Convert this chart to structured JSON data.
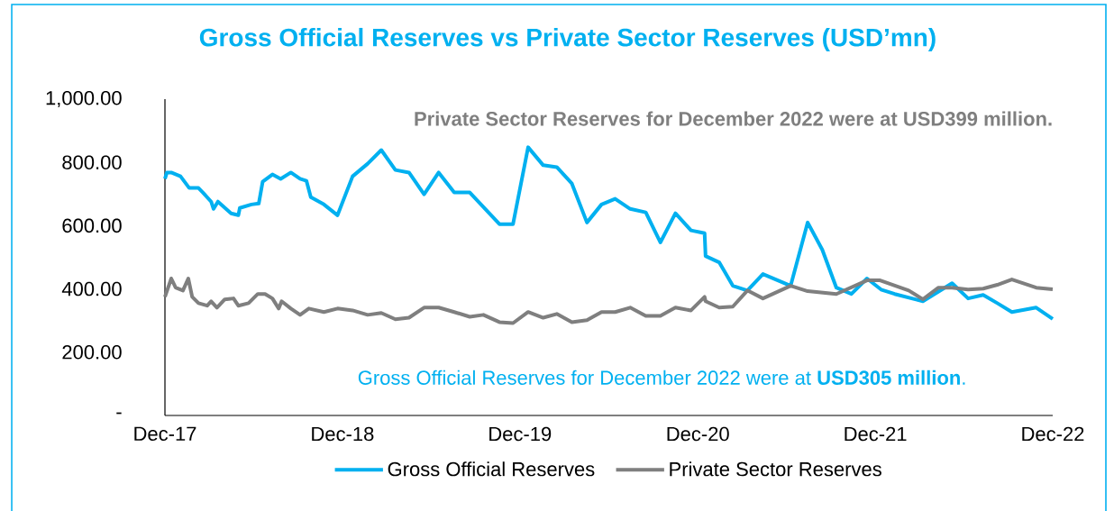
{
  "chart_data": {
    "type": "line",
    "title": "Gross Official Reserves vs Private Sector Reserves (USD’mn)",
    "annotations": [
      "Private Sector Reserves for December 2022 were at USD399 million.",
      "Gross Official Reserves for December 2022 were at **USD305 million**."
    ],
    "xlim": [
      "2017-12-01",
      "2022-12-01"
    ],
    "xticks": [
      {
        "value": "2017-12-01",
        "label": "Dec-17"
      },
      {
        "value": "2018-12-01",
        "label": "Dec-18"
      },
      {
        "value": "2019-12-01",
        "label": "Dec-19"
      },
      {
        "value": "2020-12-01",
        "label": "Dec-20"
      },
      {
        "value": "2021-12-01",
        "label": "Dec-21"
      },
      {
        "value": "2022-12-01",
        "label": "Dec-22"
      }
    ],
    "ylim": [
      0,
      1000
    ],
    "yticks": [
      {
        "value": 0,
        "label": "-"
      },
      {
        "value": 200,
        "label": "200.00"
      },
      {
        "value": 400,
        "label": "400.00"
      },
      {
        "value": 600,
        "label": "600.00"
      },
      {
        "value": 800,
        "label": "800.00"
      },
      {
        "value": 1000,
        "label": "1,000.00"
      }
    ],
    "grid": false,
    "legend": "bottom",
    "marker": "none",
    "line_style": "solid",
    "series": [
      {
        "name": "Gross Official Reserves",
        "color": "#00b0f0",
        "x": [
          "2017-12-01",
          "2017-12-05",
          "2017-12-14",
          "2018-01-02",
          "2018-01-20",
          "2018-02-08",
          "2018-02-17",
          "2018-03-06",
          "2018-03-11",
          "2018-03-20",
          "2018-04-16",
          "2018-05-01",
          "2018-05-04",
          "2018-05-28",
          "2018-06-12",
          "2018-06-20",
          "2018-07-10",
          "2018-07-27",
          "2018-08-17",
          "2018-09-05",
          "2018-09-18",
          "2018-09-27",
          "2018-10-24",
          "2018-11-21",
          "2018-12-22",
          "2019-01-22",
          "2019-02-19",
          "2019-03-20",
          "2019-04-17",
          "2019-05-18",
          "2019-06-17",
          "2019-07-19",
          "2019-08-20",
          "2019-10-20",
          "2019-11-17",
          "2019-12-18",
          "2020-01-18",
          "2020-02-15",
          "2020-03-17",
          "2020-04-17",
          "2020-05-17",
          "2020-06-14",
          "2020-07-15",
          "2020-08-16",
          "2020-09-15",
          "2020-10-16",
          "2020-11-17",
          "2020-12-15",
          "2020-12-17",
          "2021-01-14",
          "2021-02-11",
          "2021-03-13",
          "2021-04-14",
          "2021-06-10",
          "2021-07-15",
          "2021-08-14",
          "2021-09-12",
          "2021-10-13",
          "2021-11-14",
          "2021-12-13",
          "2022-01-10",
          "2022-03-09",
          "2022-05-08",
          "2022-06-10",
          "2022-07-11",
          "2022-08-09",
          "2022-09-08",
          "2022-10-28",
          "2022-12-01"
        ],
        "values": [
          748,
          768,
          768,
          756,
          719,
          719,
          705,
          676,
          653,
          676,
          639,
          633,
          656,
          667,
          670,
          739,
          762,
          748,
          768,
          748,
          742,
          690,
          667,
          633,
          756,
          796,
          839,
          776,
          768,
          699,
          768,
          705,
          705,
          605,
          605,
          848,
          791,
          785,
          733,
          610,
          667,
          685,
          653,
          642,
          547,
          639,
          585,
          576,
          504,
          484,
          410,
          395,
          447,
          410,
          610,
          524,
          404,
          384,
          433,
          398,
          384,
          361,
          418,
          370,
          381,
          355,
          327,
          341,
          305
        ]
      },
      {
        "name": "Private Sector Reserves",
        "color": "#7f7f7f",
        "x": [
          "2017-12-01",
          "2017-12-14",
          "2017-12-23",
          "2018-01-07",
          "2018-01-18",
          "2018-01-26",
          "2018-02-08",
          "2018-02-26",
          "2018-03-06",
          "2018-03-18",
          "2018-04-03",
          "2018-04-21",
          "2018-05-01",
          "2018-05-22",
          "2018-06-10",
          "2018-06-25",
          "2018-07-10",
          "2018-07-23",
          "2018-07-29",
          "2018-08-17",
          "2018-09-05",
          "2018-09-23",
          "2018-10-24",
          "2018-11-21",
          "2018-12-22",
          "2019-01-22",
          "2019-02-19",
          "2019-03-20",
          "2019-04-17",
          "2019-05-18",
          "2019-06-17",
          "2019-07-19",
          "2019-08-20",
          "2019-09-17",
          "2019-10-20",
          "2019-11-17",
          "2019-12-18",
          "2020-01-18",
          "2020-02-15",
          "2020-03-17",
          "2020-04-17",
          "2020-05-17",
          "2020-06-14",
          "2020-07-15",
          "2020-08-16",
          "2020-09-15",
          "2020-10-16",
          "2020-11-17",
          "2020-12-15",
          "2020-12-17",
          "2021-01-14",
          "2021-02-11",
          "2021-03-13",
          "2021-04-14",
          "2021-06-10",
          "2021-07-15",
          "2021-09-12",
          "2021-11-14",
          "2021-12-11",
          "2022-02-08",
          "2022-03-09",
          "2022-04-10",
          "2022-05-08",
          "2022-06-10",
          "2022-07-11",
          "2022-08-09",
          "2022-09-08",
          "2022-10-28",
          "2022-12-01"
        ],
        "values": [
          375,
          433,
          404,
          395,
          433,
          375,
          355,
          347,
          361,
          341,
          367,
          370,
          347,
          355,
          384,
          384,
          370,
          338,
          361,
          338,
          318,
          338,
          327,
          338,
          332,
          318,
          324,
          304,
          309,
          341,
          341,
          327,
          312,
          318,
          295,
          292,
          327,
          309,
          321,
          295,
          301,
          327,
          327,
          341,
          315,
          315,
          341,
          332,
          375,
          361,
          341,
          344,
          395,
          370,
          410,
          393,
          384,
          427,
          427,
          395,
          367,
          404,
          404,
          398,
          401,
          413,
          430,
          404,
          399
        ]
      }
    ]
  }
}
